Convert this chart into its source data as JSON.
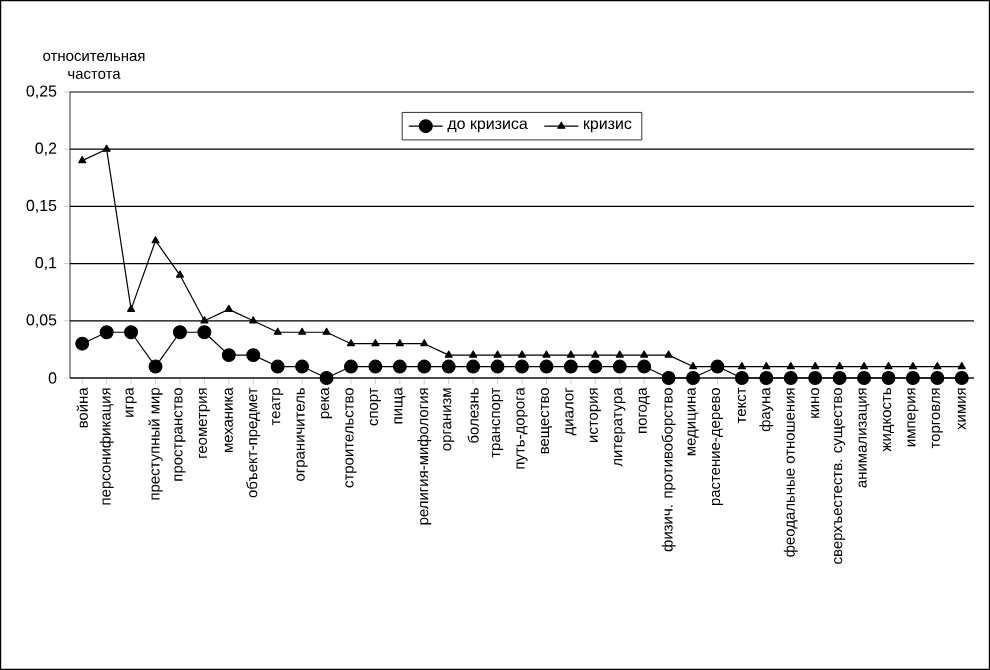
{
  "chart_data": {
    "type": "line",
    "ylabel": "относительная частота",
    "categories": [
      "война",
      "персонификация",
      "игра",
      "преступный мир",
      "пространство",
      "геометрия",
      "механика",
      "объект-предмет",
      "театр",
      "ограничитель",
      "река",
      "строительство",
      "спорт",
      "пища",
      "религия-мифология",
      "организм",
      "болезнь",
      "транспорт",
      "путь-дорога",
      "вещество",
      "диалог",
      "история",
      "литература",
      "погода",
      "физич. противоборство",
      "медицина",
      "растение-дерево",
      "текст",
      "фауна",
      "феодальные отношения",
      "кино",
      "сверхъестеств. существо",
      "анимализация",
      "жидкость",
      "империя",
      "торговля",
      "химия"
    ],
    "series": [
      {
        "name": "до кризиса",
        "color": "#000000",
        "marker": "circle",
        "values": [
          0.03,
          0.04,
          0.04,
          0.01,
          0.04,
          0.04,
          0.02,
          0.02,
          0.01,
          0.01,
          0,
          0.01,
          0.01,
          0.01,
          0.01,
          0.01,
          0.01,
          0.01,
          0.01,
          0.01,
          0.01,
          0.01,
          0.01,
          0.01,
          0,
          0,
          0.01,
          0,
          0,
          0,
          0,
          0,
          0,
          0,
          0,
          0,
          0
        ]
      },
      {
        "name": "кризис",
        "color": "#000000",
        "marker": "triangle",
        "values": [
          0.19,
          0.2,
          0.06,
          0.12,
          0.09,
          0.05,
          0.06,
          0.05,
          0.04,
          0.04,
          0.04,
          0.03,
          0.03,
          0.03,
          0.03,
          0.02,
          0.02,
          0.02,
          0.02,
          0.02,
          0.02,
          0.02,
          0.02,
          0.02,
          0.02,
          0.01,
          0.01,
          0.01,
          0.01,
          0.01,
          0.01,
          0.01,
          0.01,
          0.01,
          0.01,
          0.01,
          0.01
        ]
      }
    ],
    "ylim": [
      0,
      0.25
    ],
    "yticks": [
      0,
      {
        "value": 0.05,
        "label": "0,05"
      },
      {
        "value": 0.1,
        "label": "0,1"
      },
      {
        "value": 0.15,
        "label": "0,15"
      },
      {
        "value": 0.2,
        "label": "0,2"
      },
      {
        "value": 0.25,
        "label": "0,25"
      }
    ],
    "grid": "y",
    "legend": "top",
    "line_style": "solid"
  }
}
